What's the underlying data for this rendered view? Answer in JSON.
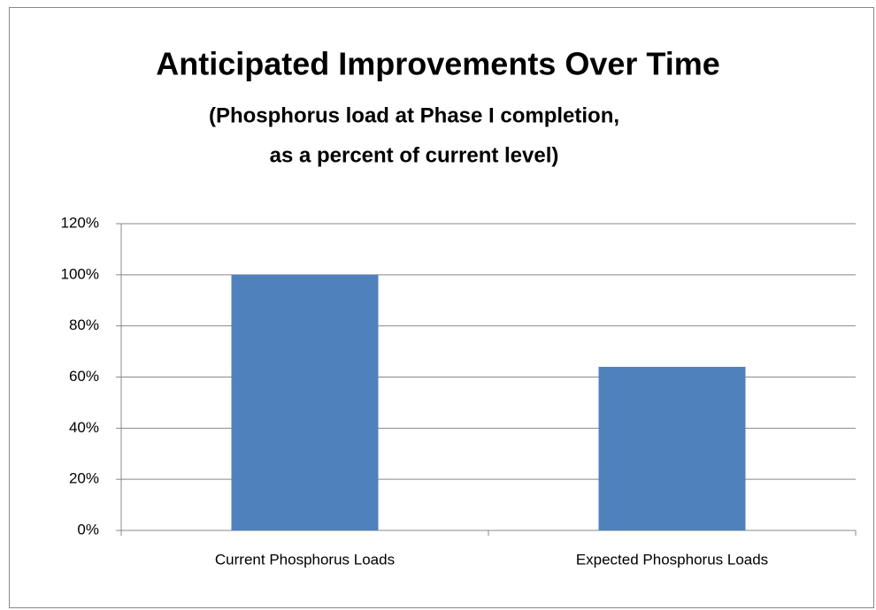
{
  "chart_data": {
    "type": "bar",
    "title": "Anticipated Improvements Over Time",
    "subtitle": [
      "(Phosphorus load at Phase I completion,",
      "as a percent of current level)"
    ],
    "categories": [
      "Current Phosphorus Loads",
      "Expected Phosphorus Loads"
    ],
    "values": [
      100,
      64
    ],
    "color": "#4f81bd",
    "ylim": [
      0,
      120
    ],
    "yticks": [
      {
        "value": 0,
        "label": "0%"
      },
      {
        "value": 20,
        "label": "20%"
      },
      {
        "value": 40,
        "label": "40%"
      },
      {
        "value": 60,
        "label": "60%"
      },
      {
        "value": 80,
        "label": "80%"
      },
      {
        "value": 100,
        "label": "100%"
      },
      {
        "value": 120,
        "label": "120%"
      }
    ],
    "grid": true
  }
}
